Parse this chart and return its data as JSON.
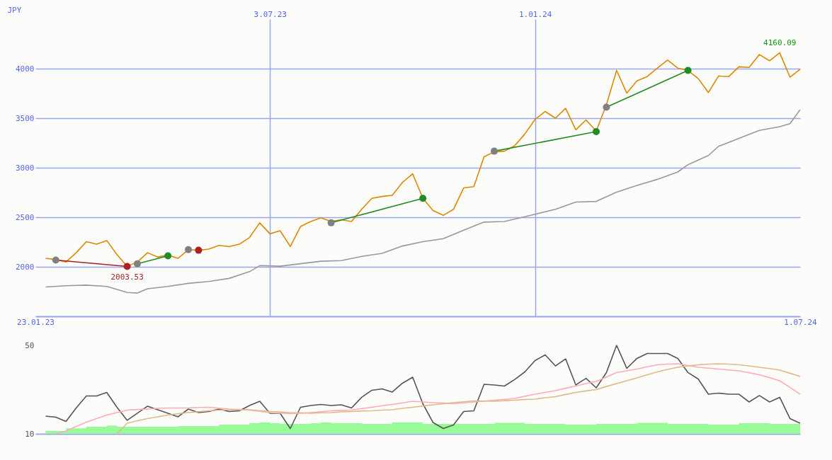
{
  "chart_data": [
    {
      "type": "line",
      "ylabel": "JPY",
      "xlim": [
        "2023-01-23",
        "2024-07-01"
      ],
      "xticks": [
        {
          "value": "2023-01-23",
          "label": "23.01.23"
        },
        {
          "value": "2024-07-01",
          "label": "1.07.24"
        }
      ],
      "x2lim": [
        "2023-01-23",
        "2024-07-01"
      ],
      "x2ticks": [
        {
          "value": "2023-07-03",
          "label": "3.07.23"
        },
        {
          "value": "2024-01-01",
          "label": "1.01.24"
        }
      ],
      "ylim": [
        1500,
        4500
      ],
      "yticks": [
        2000,
        2500,
        3000,
        3500,
        4000
      ],
      "grid": true,
      "x": [
        "2023-01-30",
        "2023-02-06",
        "2023-02-13",
        "2023-02-20",
        "2023-02-27",
        "2023-03-06",
        "2023-03-13",
        "2023-03-20",
        "2023-03-27",
        "2023-04-03",
        "2023-04-10",
        "2023-04-17",
        "2023-04-24",
        "2023-05-01",
        "2023-05-08",
        "2023-05-15",
        "2023-05-22",
        "2023-05-29",
        "2023-06-05",
        "2023-06-12",
        "2023-06-19",
        "2023-06-26",
        "2023-07-03",
        "2023-07-10",
        "2023-07-17",
        "2023-07-24",
        "2023-07-31",
        "2023-08-07",
        "2023-08-14",
        "2023-08-21",
        "2023-08-28",
        "2023-09-04",
        "2023-09-11",
        "2023-09-18",
        "2023-09-25",
        "2023-10-02",
        "2023-10-09",
        "2023-10-16",
        "2023-10-23",
        "2023-10-30",
        "2023-11-06",
        "2023-11-13",
        "2023-11-20",
        "2023-11-27",
        "2023-12-04",
        "2023-12-11",
        "2023-12-18",
        "2023-12-25",
        "2024-01-01",
        "2024-01-08",
        "2024-01-15",
        "2024-01-22",
        "2024-01-29",
        "2024-02-05",
        "2024-02-12",
        "2024-02-19",
        "2024-02-26",
        "2024-03-04",
        "2024-03-11",
        "2024-03-18",
        "2024-03-25",
        "2024-04-01",
        "2024-04-08",
        "2024-04-15",
        "2024-04-22",
        "2024-04-29",
        "2024-05-06",
        "2024-05-13",
        "2024-05-20",
        "2024-05-27",
        "2024-06-03",
        "2024-06-10",
        "2024-06-17",
        "2024-06-24",
        "2024-07-01"
      ],
      "annotations": [
        {
          "text": "2003.53",
          "x": "2023-03-27",
          "y": 2004
        },
        {
          "text": "4160.09",
          "x": "2024-06-17",
          "y": 4160
        }
      ],
      "series": [
        {
          "color": "#dd8800",
          "values": [
            2086,
            2074,
            2049,
            2142,
            2253,
            2228,
            2265,
            2123,
            2004,
            2049,
            2142,
            2099,
            2117,
            2086,
            2173,
            2167,
            2179,
            2216,
            2204,
            2228,
            2296,
            2444,
            2333,
            2364,
            2204,
            2407,
            2457,
            2494,
            2457,
            2475,
            2457,
            2580,
            2691,
            2710,
            2722,
            2852,
            2938,
            2691,
            2568,
            2519,
            2580,
            2796,
            2809,
            3111,
            3160,
            3167,
            3222,
            3340,
            3488,
            3568,
            3500,
            3599,
            3383,
            3482,
            3370,
            3636,
            3982,
            3753,
            3877,
            3920,
            4006,
            4086,
            4006,
            3982,
            3901,
            3759,
            3926,
            3920,
            4019,
            4012,
            4142,
            4080,
            4160,
            3914,
            3994
          ]
        },
        {
          "color": "#999999",
          "x": [
            "2023-01-30",
            "2023-02-13",
            "2023-02-27",
            "2023-03-13",
            "2023-03-27",
            "2023-04-03",
            "2023-04-10",
            "2023-04-24",
            "2023-05-08",
            "2023-05-22",
            "2023-06-05",
            "2023-06-19",
            "2023-06-26",
            "2023-07-10",
            "2023-07-24",
            "2023-08-07",
            "2023-08-21",
            "2023-09-04",
            "2023-09-18",
            "2023-10-02",
            "2023-10-16",
            "2023-10-30",
            "2023-11-13",
            "2023-11-27",
            "2023-12-11",
            "2023-12-25",
            "2024-01-01",
            "2024-01-15",
            "2024-01-29",
            "2024-02-12",
            "2024-02-26",
            "2024-03-11",
            "2024-03-25",
            "2024-04-08",
            "2024-04-15",
            "2024-04-29",
            "2024-05-06",
            "2024-05-20",
            "2024-06-03",
            "2024-06-17",
            "2024-06-24",
            "2024-07-01"
          ],
          "values": [
            1796,
            1809,
            1815,
            1802,
            1741,
            1735,
            1778,
            1802,
            1833,
            1852,
            1883,
            1951,
            2012,
            2006,
            2031,
            2056,
            2062,
            2105,
            2136,
            2210,
            2253,
            2284,
            2370,
            2451,
            2457,
            2506,
            2531,
            2580,
            2654,
            2660,
            2753,
            2821,
            2883,
            2957,
            3031,
            3123,
            3216,
            3296,
            3377,
            3414,
            3444,
            3586
          ]
        },
        {
          "color": "#aa2222",
          "x": [
            "2023-02-06",
            "2023-03-27"
          ],
          "values": [
            2068,
            2004
          ]
        },
        {
          "color": "#228b22",
          "x": [
            "2023-04-03",
            "2023-04-24"
          ],
          "values": [
            2031,
            2111
          ]
        },
        {
          "color": "#228b22",
          "x": [
            "2023-08-14",
            "2023-10-16"
          ],
          "values": [
            2444,
            2691
          ]
        },
        {
          "color": "#228b22",
          "x": [
            "2023-12-04",
            "2024-02-12"
          ],
          "values": [
            3167,
            3364
          ]
        },
        {
          "color": "#228b22",
          "x": [
            "2024-02-19",
            "2024-04-15"
          ],
          "values": [
            3611,
            3982
          ]
        },
        {
          "type": "scatter",
          "marker": "circle",
          "color": "#808080",
          "x": [
            "2023-02-06",
            "2023-04-03",
            "2023-05-08",
            "2023-08-14",
            "2023-12-04",
            "2024-02-19"
          ],
          "values": [
            2068,
            2031,
            2173,
            2444,
            3167,
            3611
          ]
        },
        {
          "type": "scatter",
          "marker": "circle",
          "color": "#228b22",
          "x": [
            "2023-04-24",
            "2023-10-16",
            "2024-02-12",
            "2024-04-15"
          ],
          "values": [
            2111,
            2691,
            3364,
            3982
          ]
        },
        {
          "type": "scatter",
          "marker": "circle",
          "color": "#aa2222",
          "x": [
            "2023-03-27",
            "2023-05-15"
          ],
          "values": [
            2004,
            2167
          ]
        }
      ]
    },
    {
      "type": "line",
      "categories": [
        null,
        null,
        null,
        null,
        null,
        null,
        null,
        null,
        null,
        null,
        null,
        null,
        null,
        null,
        null,
        null,
        null,
        null,
        null,
        null,
        null,
        null,
        null,
        null,
        null,
        null,
        null,
        null,
        null,
        null,
        null,
        null,
        null,
        null,
        null,
        null,
        null,
        null,
        null,
        null,
        null,
        null,
        null,
        null,
        null,
        null,
        null,
        null,
        null,
        null,
        null,
        null,
        null,
        null,
        null,
        null,
        null,
        null,
        null,
        null,
        null,
        null,
        null,
        null,
        null,
        null,
        null,
        null,
        null,
        null,
        null,
        null,
        null,
        null,
        null
      ],
      "ylim": [
        10,
        50
      ],
      "yticks": [
        10,
        50
      ],
      "tick_labels": "y",
      "series": [
        {
          "type": "area",
          "color": "#98fb98",
          "values": [
            11.3,
            11.3,
            12.5,
            12.5,
            13.2,
            13.2,
            13.8,
            13.2,
            13.2,
            13.2,
            13.2,
            13.2,
            13.2,
            13.5,
            13.5,
            13.5,
            13.5,
            14.2,
            14.2,
            14.2,
            14.8,
            15.2,
            14.8,
            14.5,
            14.5,
            14.5,
            14.8,
            15.2,
            14.8,
            14.8,
            14.8,
            14.5,
            14.5,
            14.5,
            15.2,
            15.2,
            15.2,
            14.5,
            14.5,
            14.5,
            14.5,
            14.5,
            14.5,
            14.5,
            15.0,
            15.0,
            15.0,
            14.5,
            14.5,
            14.5,
            14.5,
            14.2,
            14.2,
            14.2,
            14.5,
            14.5,
            14.5,
            14.5,
            15.0,
            15.0,
            15.0,
            14.5,
            14.5,
            14.5,
            14.5,
            14.2,
            14.2,
            14.2,
            14.8,
            14.8,
            14.8,
            14.5,
            14.5,
            14.5,
            14.5
          ]
        },
        {
          "color": "#555555",
          "values": [
            18.0,
            17.5,
            15.6,
            21.7,
            27.1,
            27.1,
            28.7,
            22.0,
            16.1,
            19.3,
            22.5,
            20.9,
            19.3,
            17.7,
            21.2,
            19.6,
            20.1,
            21.2,
            20.1,
            20.4,
            22.8,
            24.7,
            19.3,
            19.3,
            12.4,
            22.0,
            22.8,
            23.3,
            22.8,
            23.1,
            21.7,
            26.5,
            29.7,
            30.3,
            28.9,
            32.9,
            35.6,
            23.6,
            15.1,
            12.4,
            14.0,
            20.1,
            20.4,
            32.4,
            32.1,
            31.6,
            34.5,
            38.0,
            43.1,
            45.7,
            40.7,
            43.9,
            32.1,
            35.1,
            30.8,
            37.7,
            50.0,
            39.6,
            44.1,
            46.3,
            46.3,
            46.3,
            44.1,
            37.7,
            34.8,
            27.9,
            28.4,
            27.9,
            27.9,
            24.4,
            27.3,
            24.4,
            26.5,
            16.9,
            14.8
          ]
        },
        {
          "color": "#ffaabb",
          "values": [
            null,
            10.0,
            11.3,
            13.3,
            15.3,
            16.9,
            18.5,
            19.6,
            20.7,
            21.0,
            21.2,
            21.5,
            21.7,
            21.7,
            21.7,
            21.9,
            22.0,
            21.6,
            21.2,
            21.0,
            20.7,
            20.2,
            19.6,
            19.4,
            19.1,
            19.3,
            19.6,
            20.0,
            20.4,
            20.6,
            20.7,
            21.4,
            22.0,
            22.7,
            23.3,
            24.0,
            24.7,
            24.4,
            24.1,
            23.9,
            23.6,
            24.0,
            24.4,
            24.8,
            25.2,
            25.6,
            26.0,
            27.0,
            27.9,
            28.7,
            29.5,
            30.6,
            31.6,
            32.7,
            33.7,
            35.7,
            37.7,
            38.5,
            39.3,
            40.3,
            41.2,
            41.5,
            41.7,
            40.9,
            40.1,
            39.7,
            39.3,
            38.9,
            38.5,
            37.6,
            36.7,
            35.4,
            34.0,
            31.0,
            27.9
          ]
        },
        {
          "color": "#ddbb88",
          "values": [
            null,
            null,
            null,
            null,
            null,
            null,
            null,
            10.0,
            14.8,
            15.9,
            16.9,
            17.7,
            18.5,
            19.1,
            19.6,
            20.0,
            20.4,
            20.7,
            20.9,
            20.9,
            20.9,
            20.5,
            20.1,
            19.9,
            19.6,
            19.5,
            19.3,
            19.5,
            19.6,
            19.9,
            20.1,
            20.3,
            20.4,
            20.7,
            20.9,
            21.5,
            22.0,
            22.6,
            23.1,
            23.6,
            24.1,
            24.5,
            24.9,
            24.8,
            24.7,
            25.0,
            25.2,
            25.5,
            25.7,
            26.3,
            26.8,
            27.8,
            28.7,
            29.4,
            30.0,
            31.4,
            32.7,
            34.0,
            35.3,
            36.7,
            38.0,
            39.1,
            40.1,
            40.7,
            41.2,
            41.5,
            41.7,
            41.5,
            41.2,
            40.7,
            40.1,
            39.5,
            38.8,
            37.4,
            35.9
          ]
        }
      ]
    }
  ]
}
